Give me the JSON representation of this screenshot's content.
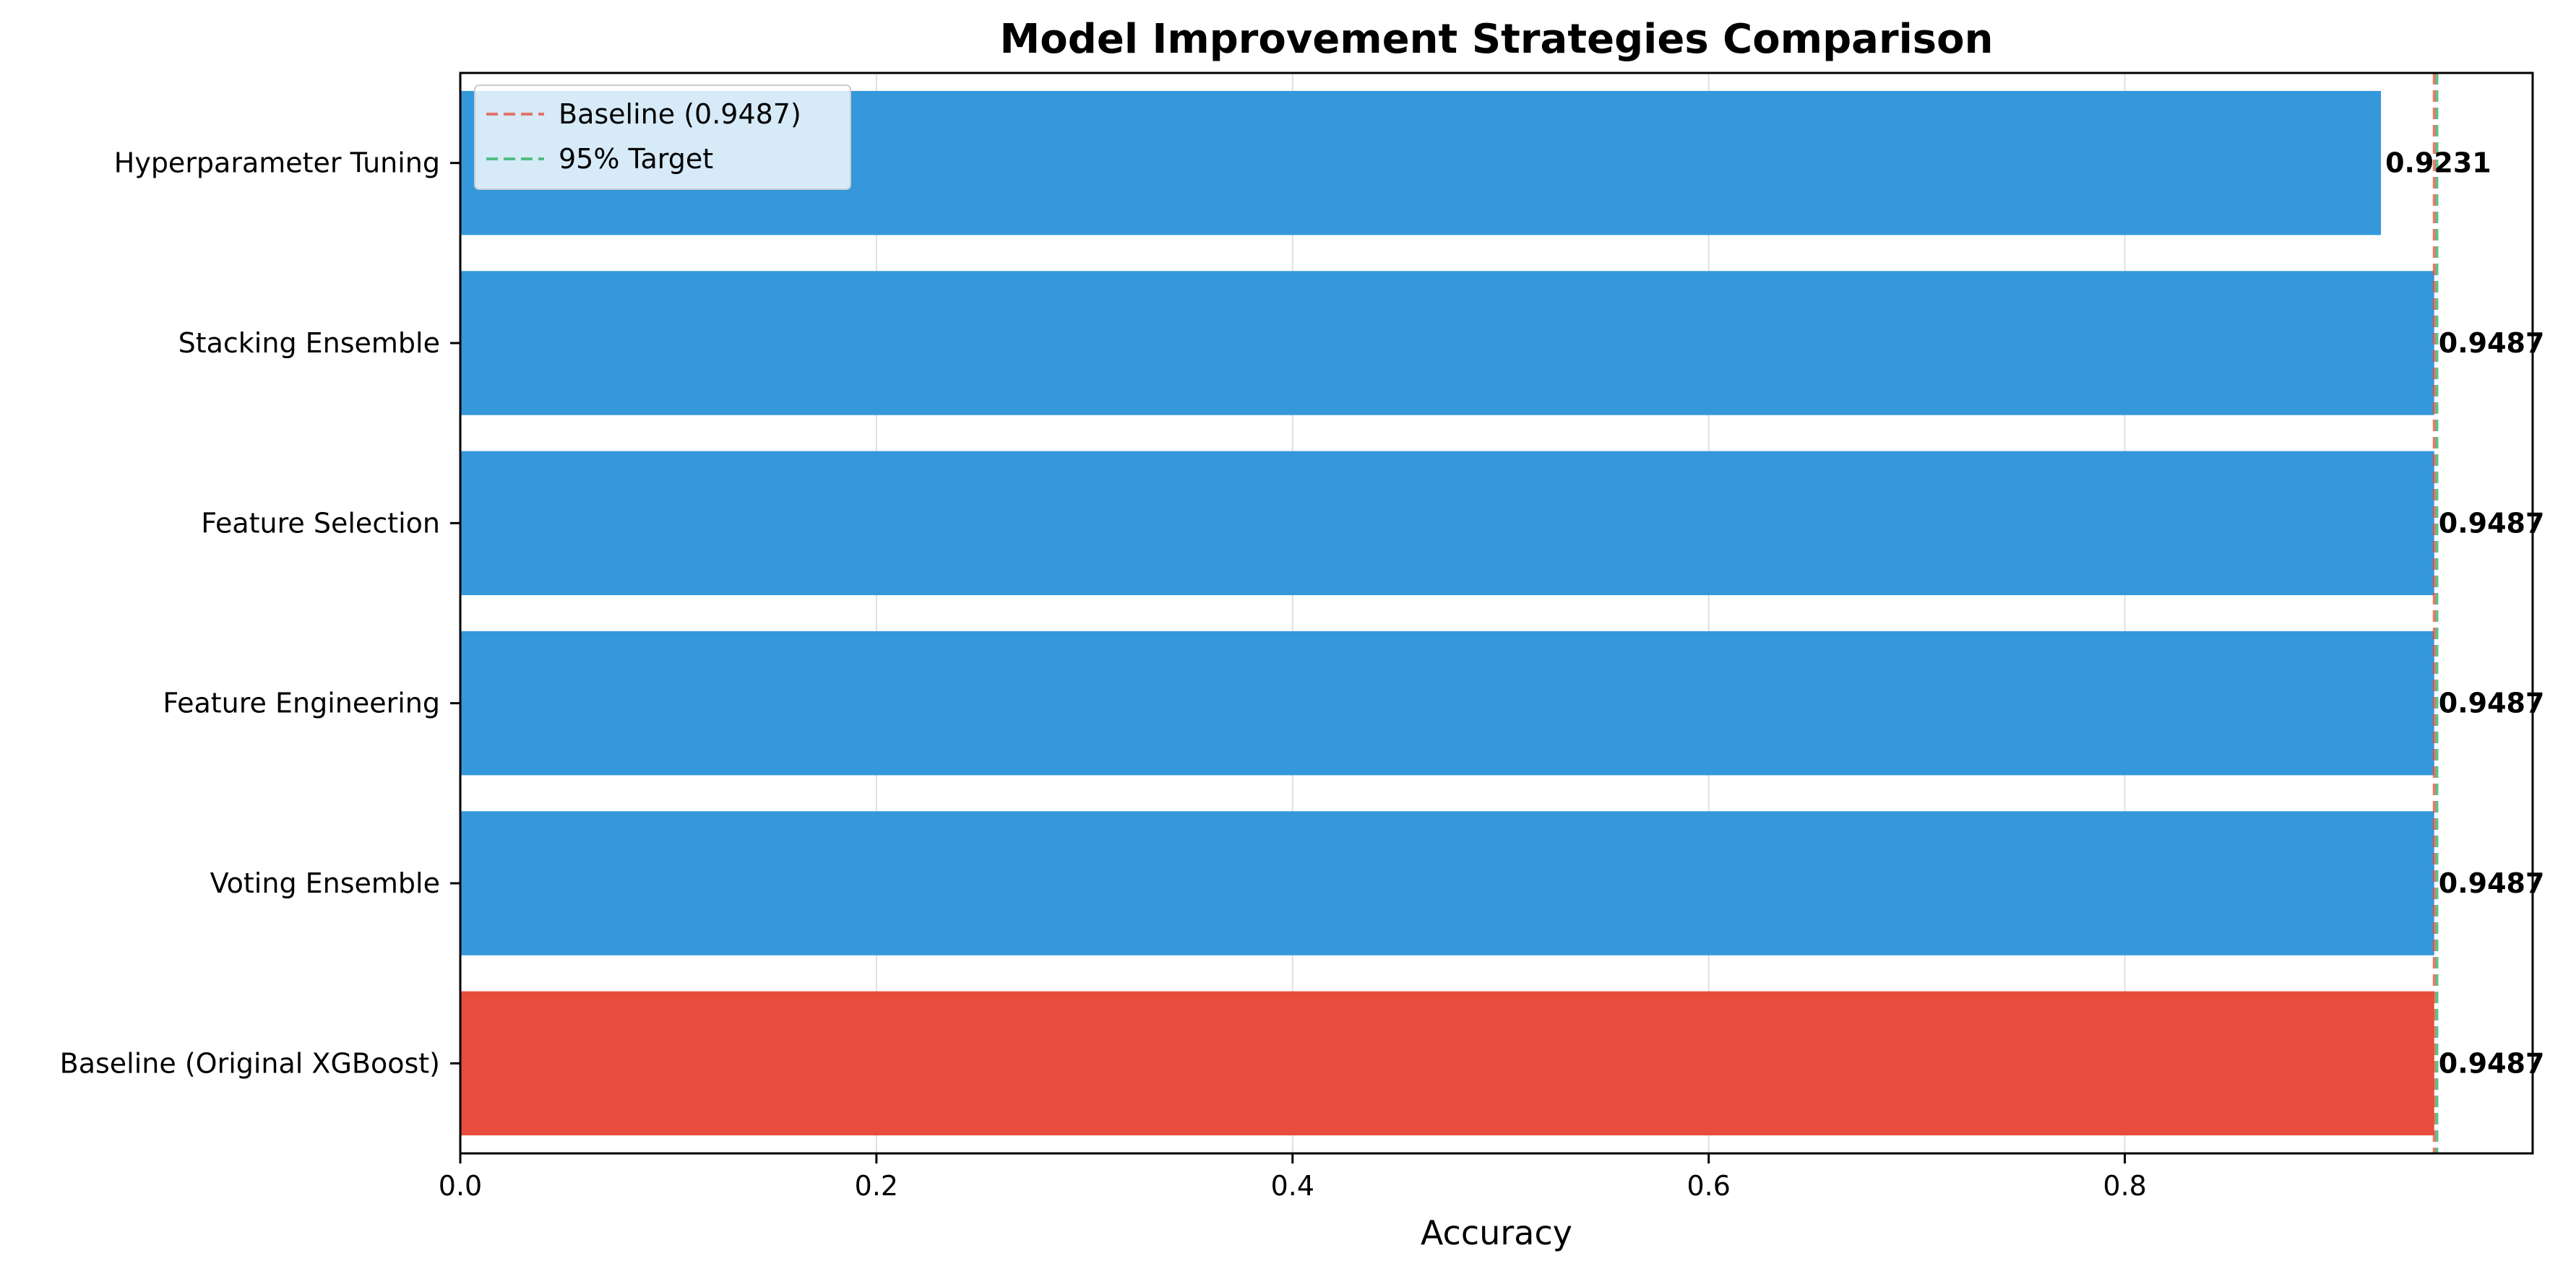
{
  "chart_data": {
    "type": "bar",
    "orientation": "horizontal",
    "title": "Model Improvement Strategies Comparison",
    "xlabel": "Accuracy",
    "ylabel": "",
    "xlim": [
      0,
      0.996
    ],
    "xticks": [
      0.0,
      0.2,
      0.4,
      0.6,
      0.8
    ],
    "xtick_labels": [
      "0.0",
      "0.2",
      "0.4",
      "0.6",
      "0.8"
    ],
    "grid": "x",
    "legend_position": "top-left",
    "categories": [
      "Baseline (Original XGBoost)",
      "Voting Ensemble",
      "Feature Engineering",
      "Feature Selection",
      "Stacking Ensemble",
      "Hyperparameter Tuning"
    ],
    "values": [
      0.9487,
      0.9487,
      0.9487,
      0.9487,
      0.9487,
      0.9231
    ],
    "value_labels": [
      "0.9487",
      "0.9487",
      "0.9487",
      "0.9487",
      "0.9487",
      "0.9231"
    ],
    "bar_colors": [
      "#e74c3c",
      "#3498db",
      "#3498db",
      "#3498db",
      "#3498db",
      "#3498db"
    ],
    "reference_lines": [
      {
        "name": "Baseline (0.9487)",
        "value": 0.9487,
        "color": "#e74c3c",
        "style": "dashed"
      },
      {
        "name": "95% Target",
        "value": 0.95,
        "color": "#27ae60",
        "style": "dashed"
      }
    ]
  }
}
